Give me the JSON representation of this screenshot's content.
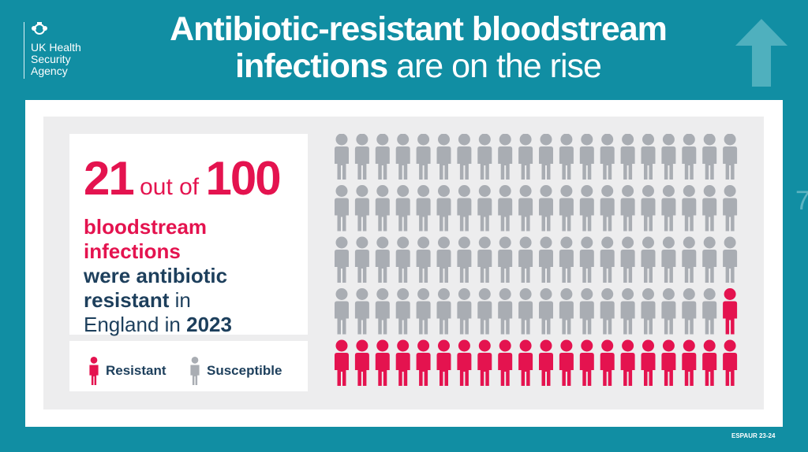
{
  "logo": {
    "lines": [
      "UK Health",
      "Security",
      "Agency"
    ]
  },
  "title": {
    "line1_bold": "Antibiotic-resistant bloodstream",
    "line2_bold": "infections",
    "line2_light": " are on the rise"
  },
  "headline": {
    "number": "21",
    "connector": " out of ",
    "total": "100"
  },
  "statement": {
    "l1": "bloodstream",
    "l2": "infections",
    "l3": "were antibiotic",
    "l4_bold": "resistant",
    "l4_rest": " in",
    "l5_rest": "England in ",
    "l5_bold": "2023"
  },
  "legend": {
    "resistant": "Resistant",
    "susceptible": "Susceptible"
  },
  "pictogram": {
    "total": 100,
    "resistant": 21,
    "columns": 20,
    "rows": 5,
    "resistant_color": "#e4134f",
    "susceptible_color": "#a9adb3"
  },
  "side_number": "7",
  "footer": "ESPAUR 23-24",
  "colors": {
    "background": "#118ea3",
    "accent": "#e4134f",
    "navy": "#1d3f5c"
  }
}
